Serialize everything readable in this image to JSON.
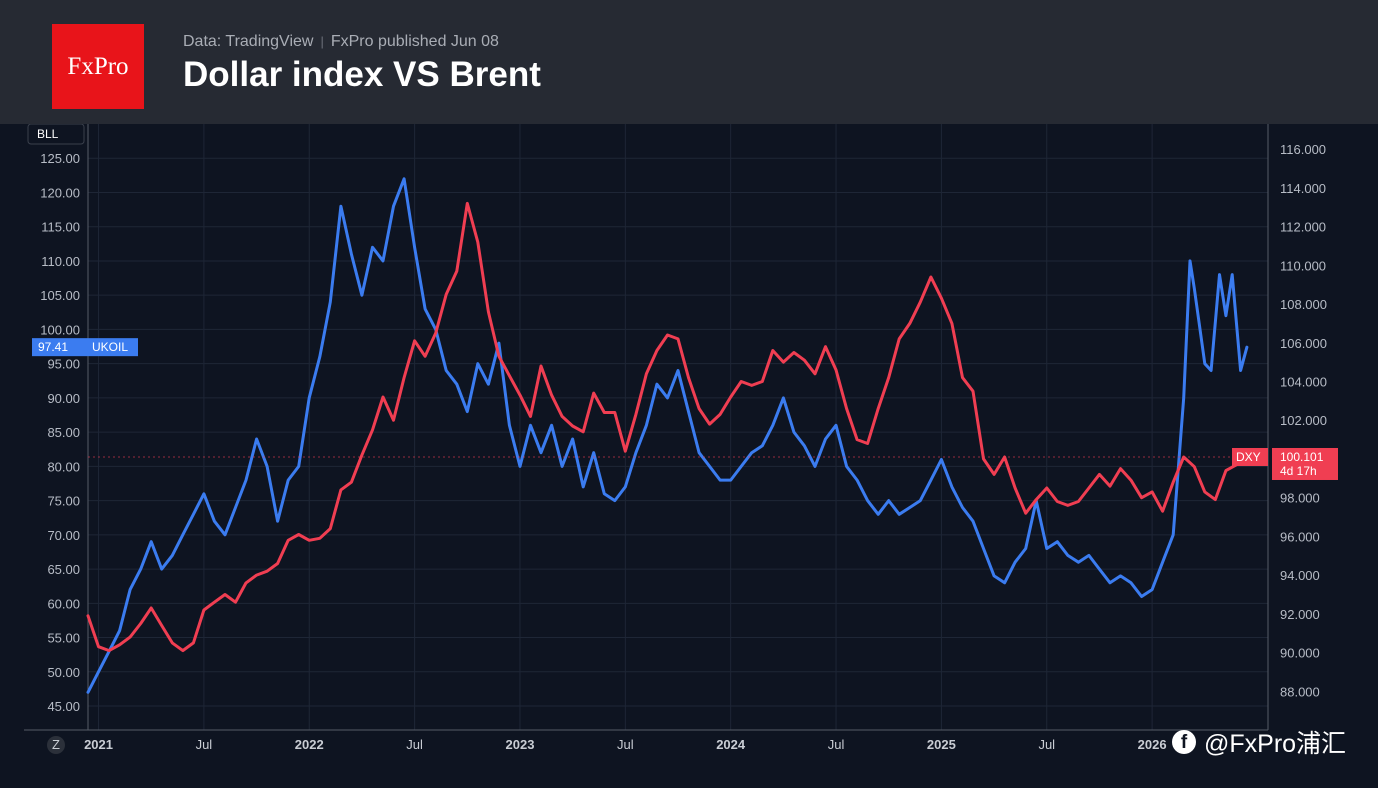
{
  "header": {
    "logo_text": "FxPro",
    "source": "Data: TradingView",
    "published": "FxPro published Jun 08",
    "title": "Dollar index VS Brent"
  },
  "watermark": {
    "icon": "facebook-icon",
    "text": "@FxPro浦汇"
  },
  "colors": {
    "ukoil": "#3b7cf0",
    "dxy": "#f03e52",
    "background": "#0e1421",
    "header": "#262a33",
    "logo": "#e8141a"
  },
  "chart_data": {
    "type": "line",
    "grid": true,
    "x_range": [
      2020.95,
      2026.55
    ],
    "x_ticks": [
      {
        "x": 2021.0,
        "label": "2021",
        "year": true
      },
      {
        "x": 2021.5,
        "label": "Jul"
      },
      {
        "x": 2022.0,
        "label": "2022",
        "year": true
      },
      {
        "x": 2022.5,
        "label": "Jul"
      },
      {
        "x": 2023.0,
        "label": "2023",
        "year": true
      },
      {
        "x": 2023.5,
        "label": "Jul"
      },
      {
        "x": 2024.0,
        "label": "2024",
        "year": true
      },
      {
        "x": 2024.5,
        "label": "Jul"
      },
      {
        "x": 2025.0,
        "label": "2025",
        "year": true
      },
      {
        "x": 2025.5,
        "label": "Jul"
      },
      {
        "x": 2026.0,
        "label": "2026",
        "year": true
      }
    ],
    "left_axis": {
      "unit_label": "BLL",
      "range": [
        41.5,
        130.0
      ],
      "ticks": [
        "45.00",
        "50.00",
        "55.00",
        "60.00",
        "65.00",
        "70.00",
        "75.00",
        "80.00",
        "85.00",
        "90.00",
        "95.00",
        "100.00",
        "105.00",
        "110.00",
        "115.00",
        "120.00",
        "125.00"
      ]
    },
    "right_axis": {
      "range": [
        86.0,
        117.3
      ],
      "ticks": [
        "88.000",
        "90.000",
        "92.000",
        "94.000",
        "96.000",
        "98.000",
        "100.000",
        "102.000",
        "104.000",
        "106.000",
        "108.000",
        "110.000",
        "112.000",
        "114.000",
        "116.000"
      ]
    },
    "corner_label": "Z",
    "series": [
      {
        "name": "UKOIL",
        "axis": "left",
        "color": "#3b7cf0",
        "last_value_label": "97.41",
        "points": [
          [
            2020.95,
            47
          ],
          [
            2021.0,
            50
          ],
          [
            2021.05,
            53
          ],
          [
            2021.1,
            56
          ],
          [
            2021.15,
            62
          ],
          [
            2021.2,
            65
          ],
          [
            2021.25,
            69
          ],
          [
            2021.3,
            65
          ],
          [
            2021.35,
            67
          ],
          [
            2021.4,
            70
          ],
          [
            2021.45,
            73
          ],
          [
            2021.5,
            76
          ],
          [
            2021.55,
            72
          ],
          [
            2021.6,
            70
          ],
          [
            2021.65,
            74
          ],
          [
            2021.7,
            78
          ],
          [
            2021.75,
            84
          ],
          [
            2021.8,
            80
          ],
          [
            2021.85,
            72
          ],
          [
            2021.9,
            78
          ],
          [
            2021.95,
            80
          ],
          [
            2022.0,
            90
          ],
          [
            2022.05,
            96
          ],
          [
            2022.1,
            104
          ],
          [
            2022.15,
            118
          ],
          [
            2022.2,
            111
          ],
          [
            2022.25,
            105
          ],
          [
            2022.3,
            112
          ],
          [
            2022.35,
            110
          ],
          [
            2022.4,
            118
          ],
          [
            2022.45,
            122
          ],
          [
            2022.5,
            112
          ],
          [
            2022.55,
            103
          ],
          [
            2022.6,
            100
          ],
          [
            2022.65,
            94
          ],
          [
            2022.7,
            92
          ],
          [
            2022.75,
            88
          ],
          [
            2022.8,
            95
          ],
          [
            2022.85,
            92
          ],
          [
            2022.9,
            98
          ],
          [
            2022.95,
            86
          ],
          [
            2023.0,
            80
          ],
          [
            2023.05,
            86
          ],
          [
            2023.1,
            82
          ],
          [
            2023.15,
            86
          ],
          [
            2023.2,
            80
          ],
          [
            2023.25,
            84
          ],
          [
            2023.3,
            77
          ],
          [
            2023.35,
            82
          ],
          [
            2023.4,
            76
          ],
          [
            2023.45,
            75
          ],
          [
            2023.5,
            77
          ],
          [
            2023.55,
            82
          ],
          [
            2023.6,
            86
          ],
          [
            2023.65,
            92
          ],
          [
            2023.7,
            90
          ],
          [
            2023.75,
            94
          ],
          [
            2023.8,
            88
          ],
          [
            2023.85,
            82
          ],
          [
            2023.9,
            80
          ],
          [
            2023.95,
            78
          ],
          [
            2024.0,
            78
          ],
          [
            2024.05,
            80
          ],
          [
            2024.1,
            82
          ],
          [
            2024.15,
            83
          ],
          [
            2024.2,
            86
          ],
          [
            2024.25,
            90
          ],
          [
            2024.3,
            85
          ],
          [
            2024.35,
            83
          ],
          [
            2024.4,
            80
          ],
          [
            2024.45,
            84
          ],
          [
            2024.5,
            86
          ],
          [
            2024.55,
            80
          ],
          [
            2024.6,
            78
          ],
          [
            2024.65,
            75
          ],
          [
            2024.7,
            73
          ],
          [
            2024.75,
            75
          ],
          [
            2024.8,
            73
          ],
          [
            2024.85,
            74
          ],
          [
            2024.9,
            75
          ],
          [
            2024.95,
            78
          ],
          [
            2025.0,
            81
          ],
          [
            2025.05,
            77
          ],
          [
            2025.1,
            74
          ],
          [
            2025.15,
            72
          ],
          [
            2025.2,
            68
          ],
          [
            2025.25,
            64
          ],
          [
            2025.3,
            63
          ],
          [
            2025.35,
            66
          ],
          [
            2025.4,
            68
          ],
          [
            2025.45,
            75
          ],
          [
            2025.5,
            68
          ],
          [
            2025.55,
            69
          ],
          [
            2025.6,
            67
          ],
          [
            2025.65,
            66
          ],
          [
            2025.7,
            67
          ],
          [
            2025.75,
            65
          ],
          [
            2025.8,
            63
          ],
          [
            2025.85,
            64
          ],
          [
            2025.9,
            63
          ],
          [
            2025.95,
            61
          ],
          [
            2026.0,
            62
          ],
          [
            2026.05,
            66
          ],
          [
            2026.1,
            70
          ],
          [
            2026.15,
            90
          ],
          [
            2026.18,
            110
          ],
          [
            2026.2,
            106
          ],
          [
            2026.25,
            95
          ],
          [
            2026.28,
            94
          ],
          [
            2026.32,
            108
          ],
          [
            2026.35,
            102
          ],
          [
            2026.38,
            108
          ],
          [
            2026.42,
            94
          ],
          [
            2026.45,
            97.41
          ]
        ]
      },
      {
        "name": "DXY",
        "axis": "right",
        "color": "#f03e52",
        "last_value_label": "100.101",
        "countdown": "4d 17h",
        "points": [
          [
            2020.95,
            91.9
          ],
          [
            2021.0,
            90.3
          ],
          [
            2021.05,
            90.1
          ],
          [
            2021.1,
            90.4
          ],
          [
            2021.15,
            90.8
          ],
          [
            2021.2,
            91.5
          ],
          [
            2021.25,
            92.3
          ],
          [
            2021.3,
            91.4
          ],
          [
            2021.35,
            90.5
          ],
          [
            2021.4,
            90.1
          ],
          [
            2021.45,
            90.5
          ],
          [
            2021.5,
            92.2
          ],
          [
            2021.55,
            92.6
          ],
          [
            2021.6,
            93.0
          ],
          [
            2021.65,
            92.6
          ],
          [
            2021.7,
            93.6
          ],
          [
            2021.75,
            94.0
          ],
          [
            2021.8,
            94.2
          ],
          [
            2021.85,
            94.6
          ],
          [
            2021.9,
            95.8
          ],
          [
            2021.95,
            96.1
          ],
          [
            2022.0,
            95.8
          ],
          [
            2022.05,
            95.9
          ],
          [
            2022.1,
            96.4
          ],
          [
            2022.15,
            98.4
          ],
          [
            2022.2,
            98.8
          ],
          [
            2022.25,
            100.2
          ],
          [
            2022.3,
            101.5
          ],
          [
            2022.35,
            103.2
          ],
          [
            2022.4,
            102.0
          ],
          [
            2022.45,
            104.2
          ],
          [
            2022.5,
            106.1
          ],
          [
            2022.55,
            105.3
          ],
          [
            2022.6,
            106.5
          ],
          [
            2022.65,
            108.5
          ],
          [
            2022.7,
            109.7
          ],
          [
            2022.75,
            113.2
          ],
          [
            2022.8,
            111.2
          ],
          [
            2022.85,
            107.6
          ],
          [
            2022.9,
            105.3
          ],
          [
            2022.95,
            104.3
          ],
          [
            2023.0,
            103.3
          ],
          [
            2023.05,
            102.2
          ],
          [
            2023.1,
            104.8
          ],
          [
            2023.15,
            103.3
          ],
          [
            2023.2,
            102.2
          ],
          [
            2023.25,
            101.7
          ],
          [
            2023.3,
            101.4
          ],
          [
            2023.35,
            103.4
          ],
          [
            2023.4,
            102.4
          ],
          [
            2023.45,
            102.4
          ],
          [
            2023.5,
            100.4
          ],
          [
            2023.55,
            102.3
          ],
          [
            2023.6,
            104.4
          ],
          [
            2023.65,
            105.6
          ],
          [
            2023.7,
            106.4
          ],
          [
            2023.75,
            106.2
          ],
          [
            2023.8,
            104.2
          ],
          [
            2023.85,
            102.6
          ],
          [
            2023.9,
            101.8
          ],
          [
            2023.95,
            102.3
          ],
          [
            2024.0,
            103.2
          ],
          [
            2024.05,
            104.0
          ],
          [
            2024.1,
            103.8
          ],
          [
            2024.15,
            104.0
          ],
          [
            2024.2,
            105.6
          ],
          [
            2024.25,
            105.0
          ],
          [
            2024.3,
            105.5
          ],
          [
            2024.35,
            105.1
          ],
          [
            2024.4,
            104.4
          ],
          [
            2024.45,
            105.8
          ],
          [
            2024.5,
            104.6
          ],
          [
            2024.55,
            102.6
          ],
          [
            2024.6,
            101.0
          ],
          [
            2024.65,
            100.8
          ],
          [
            2024.7,
            102.6
          ],
          [
            2024.75,
            104.2
          ],
          [
            2024.8,
            106.2
          ],
          [
            2024.85,
            107.0
          ],
          [
            2024.9,
            108.1
          ],
          [
            2024.95,
            109.4
          ],
          [
            2025.0,
            108.3
          ],
          [
            2025.05,
            107.0
          ],
          [
            2025.1,
            104.2
          ],
          [
            2025.15,
            103.5
          ],
          [
            2025.2,
            100.0
          ],
          [
            2025.25,
            99.2
          ],
          [
            2025.3,
            100.1
          ],
          [
            2025.35,
            98.5
          ],
          [
            2025.4,
            97.2
          ],
          [
            2025.45,
            97.9
          ],
          [
            2025.5,
            98.5
          ],
          [
            2025.55,
            97.8
          ],
          [
            2025.6,
            97.6
          ],
          [
            2025.65,
            97.8
          ],
          [
            2025.7,
            98.5
          ],
          [
            2025.75,
            99.2
          ],
          [
            2025.8,
            98.6
          ],
          [
            2025.85,
            99.5
          ],
          [
            2025.9,
            98.9
          ],
          [
            2025.95,
            98.0
          ],
          [
            2026.0,
            98.3
          ],
          [
            2026.05,
            97.3
          ],
          [
            2026.1,
            98.8
          ],
          [
            2026.15,
            100.1
          ],
          [
            2026.2,
            99.6
          ],
          [
            2026.25,
            98.3
          ],
          [
            2026.3,
            97.9
          ],
          [
            2026.35,
            99.4
          ],
          [
            2026.4,
            99.7
          ],
          [
            2026.45,
            100.101
          ]
        ]
      }
    ]
  }
}
